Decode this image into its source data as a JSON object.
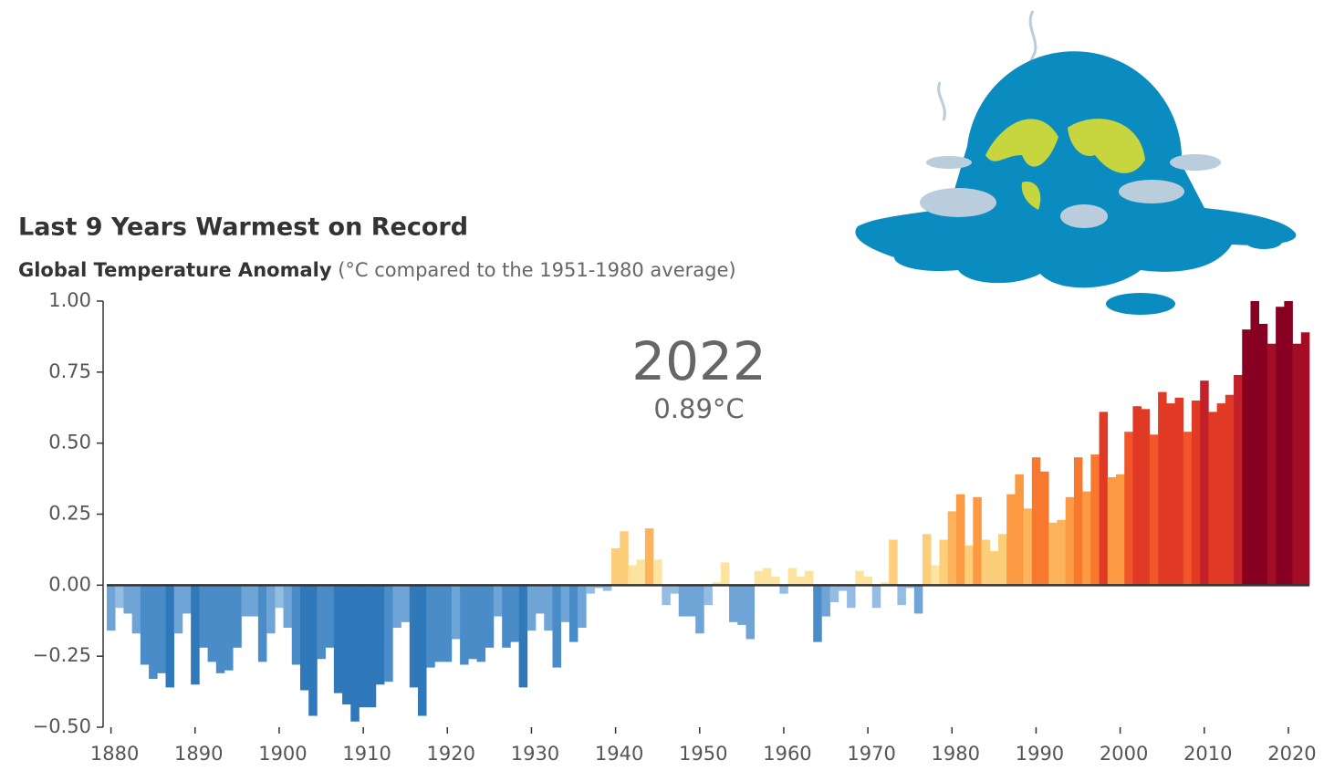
{
  "chart_data": {
    "type": "bar",
    "title": "Last 9 Years Warmest on Record",
    "subtitle_bold": "Global Temperature Anomaly",
    "subtitle": "(°C compared to the 1951-1980 average)",
    "annotation_title": "2022",
    "annotation_value": "0.89°C",
    "x": [
      1880,
      1881,
      1882,
      1883,
      1884,
      1885,
      1886,
      1887,
      1888,
      1889,
      1890,
      1891,
      1892,
      1893,
      1894,
      1895,
      1896,
      1897,
      1898,
      1899,
      1900,
      1901,
      1902,
      1903,
      1904,
      1905,
      1906,
      1907,
      1908,
      1909,
      1910,
      1911,
      1912,
      1913,
      1914,
      1915,
      1916,
      1917,
      1918,
      1919,
      1920,
      1921,
      1922,
      1923,
      1924,
      1925,
      1926,
      1927,
      1928,
      1929,
      1930,
      1931,
      1932,
      1933,
      1934,
      1935,
      1936,
      1937,
      1938,
      1939,
      1940,
      1941,
      1942,
      1943,
      1944,
      1945,
      1946,
      1947,
      1948,
      1949,
      1950,
      1951,
      1952,
      1953,
      1954,
      1955,
      1956,
      1957,
      1958,
      1959,
      1960,
      1961,
      1962,
      1963,
      1964,
      1965,
      1966,
      1967,
      1968,
      1969,
      1970,
      1971,
      1972,
      1973,
      1974,
      1975,
      1976,
      1977,
      1978,
      1979,
      1980,
      1981,
      1982,
      1983,
      1984,
      1985,
      1986,
      1987,
      1988,
      1989,
      1990,
      1991,
      1992,
      1993,
      1994,
      1995,
      1996,
      1997,
      1998,
      1999,
      2000,
      2001,
      2002,
      2003,
      2004,
      2005,
      2006,
      2007,
      2008,
      2009,
      2010,
      2011,
      2012,
      2013,
      2014,
      2015,
      2016,
      2017,
      2018,
      2019,
      2020,
      2021,
      2022
    ],
    "values": [
      -0.16,
      -0.08,
      -0.1,
      -0.17,
      -0.28,
      -0.33,
      -0.31,
      -0.36,
      -0.17,
      -0.1,
      -0.35,
      -0.22,
      -0.27,
      -0.31,
      -0.3,
      -0.22,
      -0.11,
      -0.11,
      -0.27,
      -0.17,
      -0.08,
      -0.15,
      -0.28,
      -0.37,
      -0.46,
      -0.26,
      -0.22,
      -0.38,
      -0.42,
      -0.48,
      -0.43,
      -0.43,
      -0.35,
      -0.34,
      -0.15,
      -0.13,
      -0.36,
      -0.46,
      -0.29,
      -0.27,
      -0.27,
      -0.19,
      -0.28,
      -0.26,
      -0.27,
      -0.22,
      -0.11,
      -0.22,
      -0.2,
      -0.36,
      -0.16,
      -0.1,
      -0.16,
      -0.29,
      -0.13,
      -0.2,
      -0.15,
      -0.03,
      -0.01,
      -0.02,
      0.13,
      0.19,
      0.07,
      0.09,
      0.2,
      0.09,
      -0.07,
      -0.03,
      -0.11,
      -0.11,
      -0.17,
      -0.07,
      0.01,
      0.08,
      -0.13,
      -0.14,
      -0.19,
      0.05,
      0.06,
      0.03,
      -0.03,
      0.06,
      0.03,
      0.05,
      -0.2,
      -0.11,
      -0.06,
      -0.02,
      -0.08,
      0.05,
      0.03,
      -0.08,
      0.01,
      0.16,
      -0.07,
      -0.01,
      -0.1,
      0.18,
      0.07,
      0.16,
      0.26,
      0.32,
      0.14,
      0.31,
      0.16,
      0.12,
      0.18,
      0.32,
      0.39,
      0.27,
      0.45,
      0.4,
      0.22,
      0.23,
      0.31,
      0.45,
      0.33,
      0.46,
      0.61,
      0.38,
      0.39,
      0.54,
      0.63,
      0.62,
      0.53,
      0.68,
      0.64,
      0.66,
      0.54,
      0.65,
      0.72,
      0.61,
      0.64,
      0.67,
      0.74,
      0.9,
      1.0,
      0.92,
      0.85,
      0.98,
      1.0,
      0.85,
      0.89
    ],
    "colors": [
      "#6fa5d6",
      "#93bde2",
      "#6fa5d6",
      "#6fa5d6",
      "#4a8cc8",
      "#4a8cc8",
      "#4a8cc8",
      "#2f78ba",
      "#6fa5d6",
      "#6fa5d6",
      "#2f78ba",
      "#4a8cc8",
      "#4a8cc8",
      "#4a8cc8",
      "#4a8cc8",
      "#4a8cc8",
      "#6fa5d6",
      "#6fa5d6",
      "#4a8cc8",
      "#6fa5d6",
      "#93bde2",
      "#6fa5d6",
      "#4a8cc8",
      "#2f78ba",
      "#2f78ba",
      "#4a8cc8",
      "#4a8cc8",
      "#2f78ba",
      "#2f78ba",
      "#2f78ba",
      "#2f78ba",
      "#2f78ba",
      "#2f78ba",
      "#4a8cc8",
      "#6fa5d6",
      "#6fa5d6",
      "#2f78ba",
      "#2f78ba",
      "#4a8cc8",
      "#4a8cc8",
      "#4a8cc8",
      "#6fa5d6",
      "#4a8cc8",
      "#4a8cc8",
      "#4a8cc8",
      "#4a8cc8",
      "#6fa5d6",
      "#4a8cc8",
      "#4a8cc8",
      "#2f78ba",
      "#6fa5d6",
      "#6fa5d6",
      "#6fa5d6",
      "#4a8cc8",
      "#6fa5d6",
      "#4a8cc8",
      "#6fa5d6",
      "#93bde2",
      "#93bde2",
      "#93bde2",
      "#fdce7a",
      "#fdce7a",
      "#fde3a0",
      "#fde3a0",
      "#fdb25c",
      "#fde3a0",
      "#93bde2",
      "#93bde2",
      "#6fa5d6",
      "#6fa5d6",
      "#6fa5d6",
      "#93bde2",
      "#fde3a0",
      "#fde3a0",
      "#6fa5d6",
      "#6fa5d6",
      "#6fa5d6",
      "#fde3a0",
      "#fde3a0",
      "#fde3a0",
      "#93bde2",
      "#fde3a0",
      "#fde3a0",
      "#fde3a0",
      "#4a8cc8",
      "#6fa5d6",
      "#93bde2",
      "#93bde2",
      "#93bde2",
      "#fde3a0",
      "#fde3a0",
      "#93bde2",
      "#fde3a0",
      "#fdce7a",
      "#93bde2",
      "#93bde2",
      "#6fa5d6",
      "#fdce7a",
      "#fde3a0",
      "#fdce7a",
      "#fdb25c",
      "#fc9a43",
      "#fdce7a",
      "#fc9a43",
      "#fdce7a",
      "#fdce7a",
      "#fdce7a",
      "#fc9a43",
      "#fc9a43",
      "#fdb25c",
      "#f8782e",
      "#f8782e",
      "#fdb25c",
      "#fdb25c",
      "#fc9a43",
      "#f8782e",
      "#fc9a43",
      "#f8782e",
      "#e03a25",
      "#fc9a43",
      "#fc9a43",
      "#f0562a",
      "#e03a25",
      "#e03a25",
      "#f0562a",
      "#e03a25",
      "#e03a25",
      "#e03a25",
      "#f0562a",
      "#e03a25",
      "#c4202a",
      "#e03a25",
      "#e03a25",
      "#e03a25",
      "#c4202a",
      "#870021",
      "#870021",
      "#870021",
      "#a30d25",
      "#870021",
      "#870021",
      "#a30d25",
      "#a30d25"
    ],
    "xlim": [
      1879.5,
      2022.5
    ],
    "xticks": [
      1880,
      1890,
      1900,
      1910,
      1920,
      1930,
      1940,
      1950,
      1960,
      1970,
      1980,
      1990,
      2000,
      2010,
      2020
    ],
    "ylim": [
      -0.5,
      1.0
    ],
    "yticks": [
      {
        "value": 1.0,
        "label": "1.00"
      },
      {
        "value": 0.75,
        "label": "0.75"
      },
      {
        "value": 0.5,
        "label": "0.50"
      },
      {
        "value": 0.25,
        "label": "0.25"
      },
      {
        "value": 0,
        "label": "0.00"
      },
      {
        "value": -0.25,
        "label": "−0.25"
      },
      {
        "value": -0.5,
        "label": "−0.50"
      }
    ],
    "grid": false
  }
}
